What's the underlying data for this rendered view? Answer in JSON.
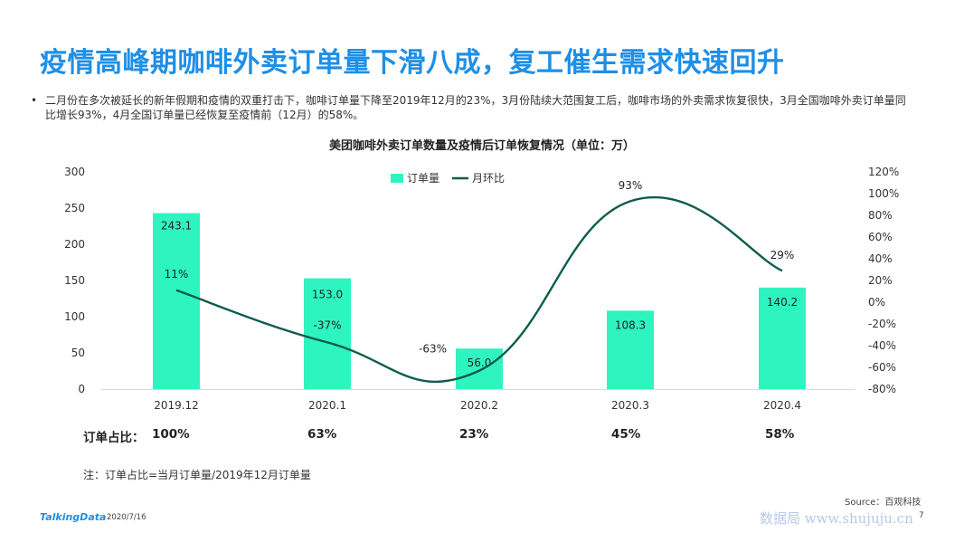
{
  "page": {
    "title": "疫情高峰期咖啡外卖订单量下滑八成，复工催生需求快速回升",
    "bullet_marker": "•",
    "bullet_text": "二月份在多次被延长的新年假期和疫情的双重打击下，咖啡订单量下降至2019年12月的23%，3月份陆续大范围复工后，咖啡市场的外卖需求恢复很快，3月全国咖啡外卖订单量同比增长93%，4月全国订单量已经恢复至疫情前（12月）的58%。",
    "note": "注：订单占比=当月订单量/2019年12月订单量",
    "source": "Source：百观科技",
    "brand": "TalkingData",
    "date": "2020/7/16",
    "page_number": "7",
    "watermark": "数据局 www.shujuju.cn"
  },
  "ratio_row": {
    "label": "订单占比：",
    "values": [
      "100%",
      "63%",
      "23%",
      "45%",
      "58%"
    ]
  },
  "colors": {
    "title": "#1e8fe6",
    "bar": "#2ef5c0",
    "line": "#0e5c4e",
    "axis_text": "#333333"
  },
  "chart_data": {
    "type": "bar",
    "title": "美团咖啡外卖订单数量及疫情后订单恢复情况（单位：万）",
    "categories": [
      "2019.12",
      "2020.1",
      "2020.2",
      "2020.3",
      "2020.4"
    ],
    "legend_position": "top",
    "grid": false,
    "series": [
      {
        "name": "订单量",
        "type": "bar",
        "axis": "left",
        "values": [
          243.1,
          153.0,
          56.0,
          108.3,
          140.2
        ],
        "labels": [
          "243.1",
          "153.0",
          "56.0",
          "108.3",
          "140.2"
        ]
      },
      {
        "name": "月环比",
        "type": "line",
        "axis": "right",
        "smooth": true,
        "x_index": [
          0,
          1,
          2,
          3,
          4
        ],
        "values": [
          11,
          -37,
          -63,
          93,
          29
        ],
        "labels": [
          "11%",
          "-37%",
          "-63%",
          "93%",
          "29%"
        ]
      }
    ],
    "y_left": {
      "ylim": [
        0,
        300
      ],
      "ticks": [
        "0",
        "50",
        "100",
        "150",
        "200",
        "250",
        "300"
      ]
    },
    "y_right": {
      "ylim": [
        -80,
        120
      ],
      "ticks": [
        "-80%",
        "-60%",
        "-40%",
        "-20%",
        "0%",
        "20%",
        "40%",
        "60%",
        "80%",
        "100%",
        "120%"
      ]
    }
  }
}
